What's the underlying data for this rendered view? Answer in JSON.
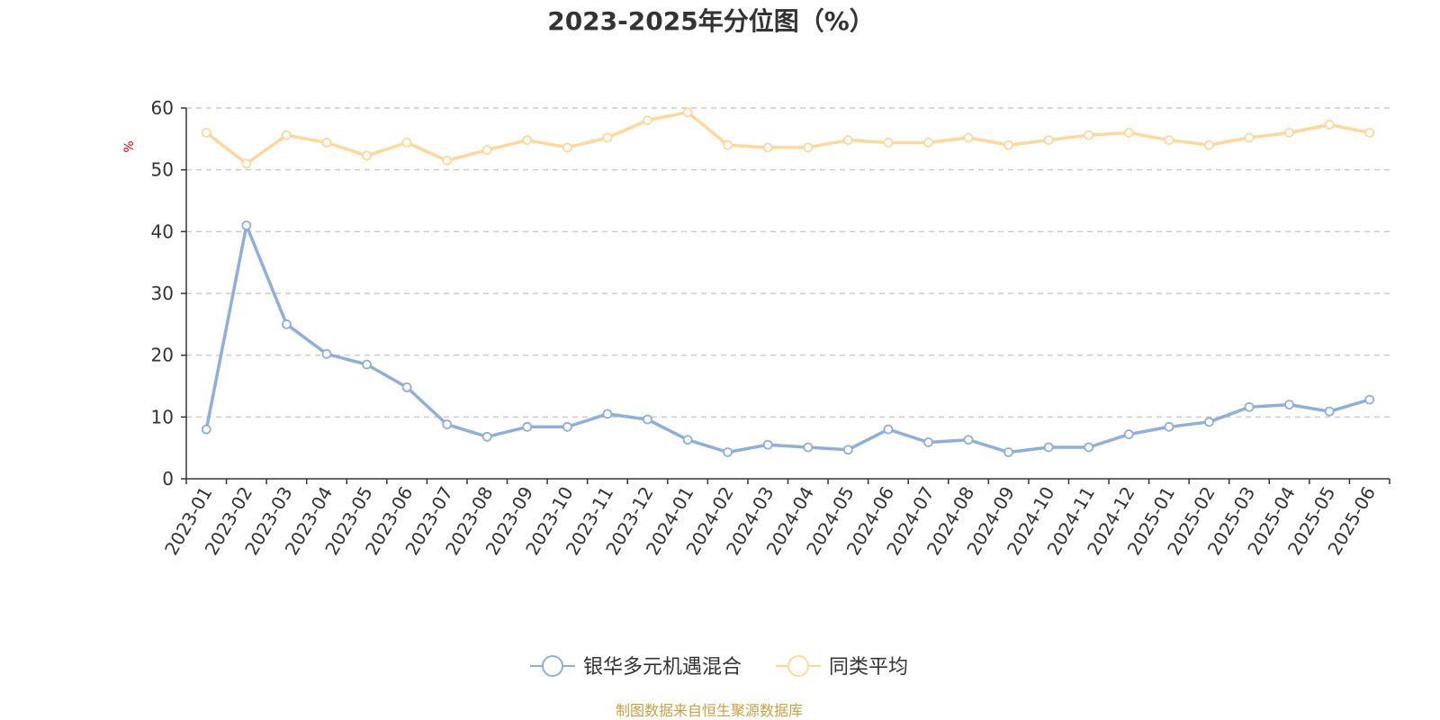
{
  "colors": {
    "series_fund": "#8eaedb",
    "series_avg": "#fdd89a",
    "ylabel": "#e00000",
    "source": "#c8a040",
    "grid": "#cccccc",
    "axis": "#333333"
  },
  "source_text": "制图数据来自恒生聚源数据库",
  "chart_data": {
    "type": "line",
    "title": "2023-2025年分位图（%）",
    "ylabel": "%",
    "xlabel": "",
    "ylim": [
      0,
      60
    ],
    "yticks": [
      0,
      10,
      20,
      30,
      40,
      50,
      60
    ],
    "grid": true,
    "legend_position": "bottom-center",
    "categories": [
      "2023-01",
      "2023-02",
      "2023-03",
      "2023-04",
      "2023-05",
      "2023-06",
      "2023-07",
      "2023-08",
      "2023-09",
      "2023-10",
      "2023-11",
      "2023-12",
      "2024-01",
      "2024-02",
      "2024-03",
      "2024-04",
      "2024-05",
      "2024-06",
      "2024-07",
      "2024-08",
      "2024-09",
      "2024-10",
      "2024-11",
      "2024-12",
      "2025-01",
      "2025-02",
      "2025-03",
      "2025-04",
      "2025-05",
      "2025-06"
    ],
    "series": [
      {
        "name": "银华多元机遇混合",
        "values": [
          8.0,
          41.0,
          25.0,
          20.2,
          18.5,
          14.8,
          8.8,
          6.8,
          8.4,
          8.4,
          10.5,
          9.6,
          6.3,
          4.3,
          5.5,
          5.1,
          4.7,
          8.0,
          5.9,
          6.3,
          4.3,
          5.1,
          5.1,
          7.2,
          8.4,
          9.2,
          11.6,
          12.0,
          10.9,
          12.8
        ]
      },
      {
        "name": "同类平均",
        "values": [
          56.0,
          51.0,
          55.6,
          54.4,
          52.3,
          54.4,
          51.5,
          53.2,
          54.8,
          53.6,
          55.2,
          58.0,
          59.3,
          54.0,
          53.6,
          53.6,
          54.8,
          54.4,
          54.4,
          55.2,
          54.0,
          54.8,
          55.6,
          56.0,
          54.8,
          54.0,
          55.2,
          56.0,
          57.3,
          56.0
        ]
      }
    ]
  }
}
